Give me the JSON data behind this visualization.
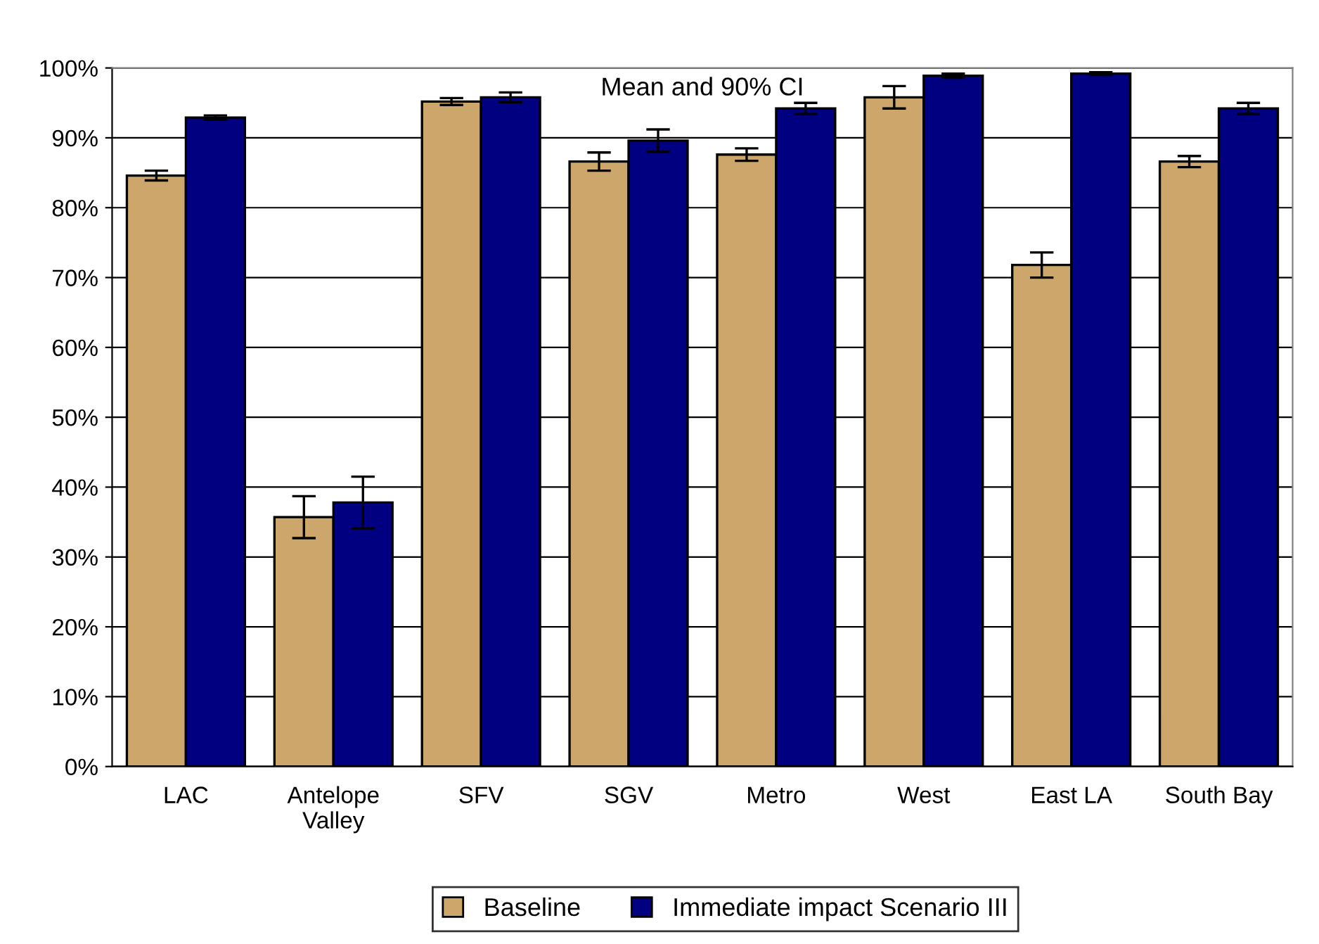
{
  "chart_data": {
    "type": "bar",
    "title": "Mean and 90% CI",
    "categories": [
      "LAC",
      "Antelope\nValley",
      "SFV",
      "SGV",
      "Metro",
      "West",
      "East LA",
      "South Bay"
    ],
    "series": [
      {
        "name": "Baseline",
        "color": "#cca66b",
        "values": [
          84.6,
          35.7,
          95.2,
          86.6,
          87.6,
          95.8,
          71.8,
          86.6
        ],
        "errors": [
          0.7,
          3,
          0.5,
          1.3,
          0.9,
          1.6,
          1.8,
          0.8
        ]
      },
      {
        "name": "Immediate impact Scenario III",
        "color": "#000080",
        "values": [
          92.9,
          37.8,
          95.8,
          89.6,
          94.2,
          98.9,
          99.2,
          94.2
        ],
        "errors": [
          0.3,
          3.7,
          0.7,
          1.6,
          0.8,
          0.3,
          0.2,
          0.8
        ]
      }
    ],
    "ylim": [
      0,
      100
    ],
    "yticks": [
      {
        "value": 0,
        "label": "0%"
      },
      {
        "value": 10,
        "label": "10%"
      },
      {
        "value": 20,
        "label": "20%"
      },
      {
        "value": 30,
        "label": "30%"
      },
      {
        "value": 40,
        "label": "40%"
      },
      {
        "value": 50,
        "label": "50%"
      },
      {
        "value": 60,
        "label": "60%"
      },
      {
        "value": 70,
        "label": "70%"
      },
      {
        "value": 80,
        "label": "80%"
      },
      {
        "value": 90,
        "label": "90%"
      },
      {
        "value": 100,
        "label": "100%"
      }
    ],
    "grid": "y",
    "legend": "bottom"
  }
}
